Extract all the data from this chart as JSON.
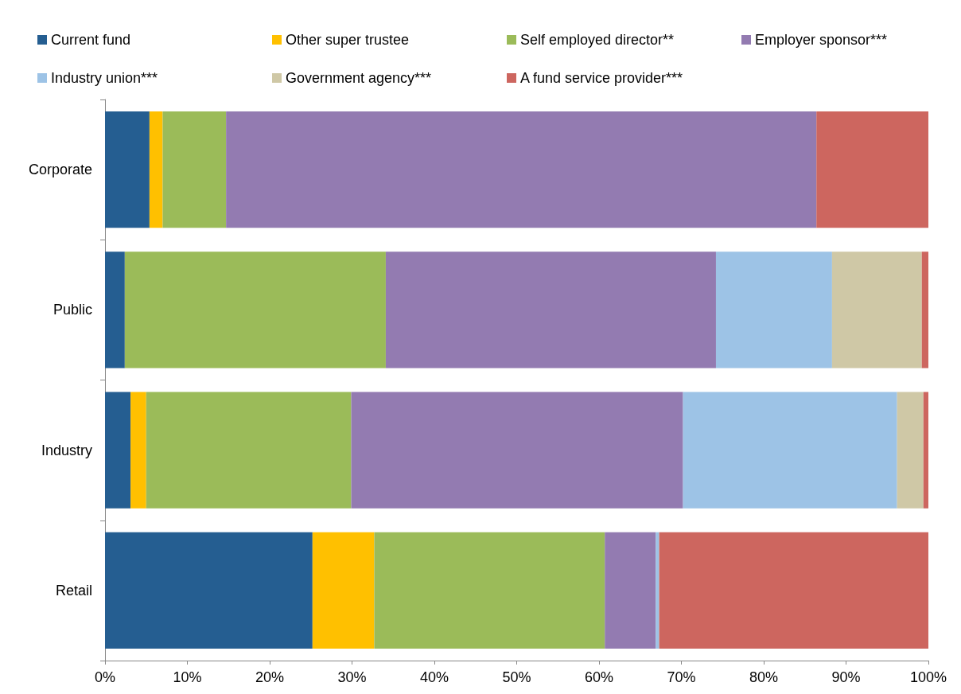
{
  "chart_data": {
    "type": "bar",
    "orientation": "horizontal",
    "stacked": true,
    "categories": [
      "Corporate",
      "Public",
      "Industry",
      "Retail"
    ],
    "series": [
      {
        "name": "Current fund",
        "color": "#255e91",
        "values": [
          5.4,
          2.4,
          3.1,
          25.2
        ]
      },
      {
        "name": "Other super trustee",
        "color": "#ffc000",
        "values": [
          1.6,
          null,
          1.9,
          7.5
        ]
      },
      {
        "name": "Self employed director**",
        "color": "#9bbb59",
        "values": [
          7.7,
          31.7,
          24.9,
          28.0
        ]
      },
      {
        "name": "Employer sponsor***",
        "color": "#937bb1",
        "values": [
          71.7,
          40.1,
          40.3,
          6.2
        ]
      },
      {
        "name": "Industry union***",
        "color": "#9dc3e6",
        "values": [
          null,
          14.1,
          26.0,
          0.4
        ]
      },
      {
        "name": "Government agency***",
        "color": "#cfc8a6",
        "values": [
          null,
          10.9,
          3.2,
          null
        ]
      },
      {
        "name": "A fund service provider***",
        "color": "#cd665f",
        "values": [
          13.6,
          0.8,
          0.6,
          32.7
        ]
      }
    ],
    "xlim": [
      0,
      100
    ],
    "xticks": [
      {
        "value": 0,
        "label": "0%"
      },
      {
        "value": 10,
        "label": "10%"
      },
      {
        "value": 20,
        "label": "20%"
      },
      {
        "value": 30,
        "label": "30%"
      },
      {
        "value": 40,
        "label": "40%"
      },
      {
        "value": 50,
        "label": "50%"
      },
      {
        "value": 60,
        "label": "60%"
      },
      {
        "value": 70,
        "label": "70%"
      },
      {
        "value": 80,
        "label": "80%"
      },
      {
        "value": 90,
        "label": "90%"
      },
      {
        "value": 100,
        "label": "100%"
      }
    ],
    "grid": false,
    "legend": "top"
  }
}
